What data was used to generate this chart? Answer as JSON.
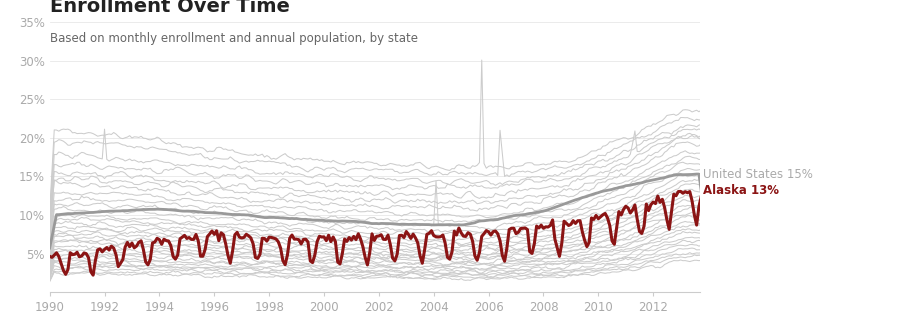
{
  "title": "Enrollment Over Time",
  "subtitle": "Based on monthly enrollment and annual population, by state",
  "title_color": "#222222",
  "subtitle_color": "#666666",
  "background_color": "#ffffff",
  "ytick_color": "#aaaaaa",
  "xtick_color": "#aaaaaa",
  "alaska_color": "#8b1414",
  "us_color": "#888888",
  "other_color": "#cccccc",
  "ylim": [
    0.0,
    0.37
  ],
  "xlim_start": 1990.0,
  "xlim_end": 2013.7,
  "yticks": [
    0.05,
    0.1,
    0.15,
    0.2,
    0.25,
    0.3,
    0.35
  ],
  "ytick_labels": [
    "5%",
    "10%",
    "15%",
    "20%",
    "25%",
    "30%",
    "35%"
  ],
  "xtick_years": [
    1990,
    1992,
    1994,
    1996,
    1998,
    2000,
    2002,
    2004,
    2006,
    2008,
    2010,
    2012
  ],
  "label_us": "United States 15%",
  "label_alaska": "Alaska 13%",
  "label_us_color": "#aaaaaa",
  "label_alaska_color": "#8b1414",
  "n_months": 288,
  "seed": 42
}
